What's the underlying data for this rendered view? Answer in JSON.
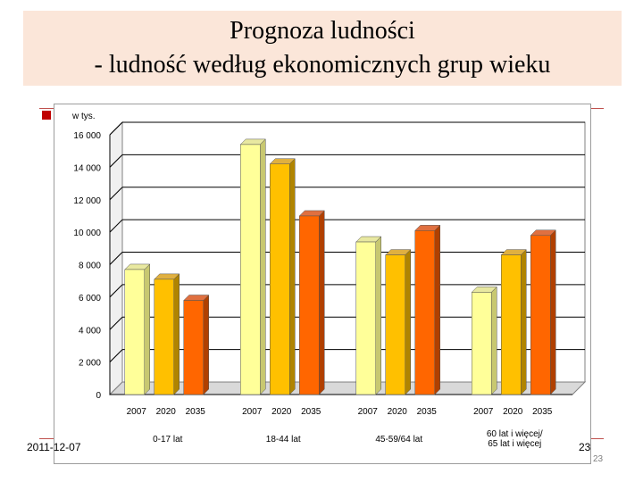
{
  "slide": {
    "title_line1": "Prognoza ludności",
    "title_line2": "- ludność według ekonomicznych grup wieku",
    "date": "2011-12-07",
    "page": "23",
    "page_small": "23"
  },
  "chart_data": {
    "type": "bar",
    "unit_label": "w tys.",
    "ylim": [
      0,
      16000
    ],
    "yticks": [
      "0",
      "2 000",
      "4 000",
      "6 000",
      "8 000",
      "10 000",
      "12 000",
      "14 000",
      "16 000"
    ],
    "groups": [
      {
        "label": "0-17 lat",
        "years": [
          "2007",
          "2020",
          "2035"
        ],
        "values": [
          7700,
          7100,
          5800
        ]
      },
      {
        "label": "18-44 lat",
        "years": [
          "2007",
          "2020",
          "2035"
        ],
        "values": [
          15400,
          14200,
          11000
        ]
      },
      {
        "label": "45-59/64 lat",
        "years": [
          "2007",
          "2020",
          "2035"
        ],
        "values": [
          9400,
          8600,
          10100
        ]
      },
      {
        "label": "60 lat i więcej/\n65 lat i więcej",
        "years": [
          "2007",
          "2020",
          "2035"
        ],
        "values": [
          6300,
          8600,
          9800
        ]
      }
    ],
    "colors": {
      "2007": {
        "front": "#ffff99",
        "side": "#c8c870",
        "top": "#e8e8a0"
      },
      "2020": {
        "front": "#ffc000",
        "side": "#b08400",
        "top": "#e0b040"
      },
      "2035": {
        "front": "#ff6600",
        "side": "#b04000",
        "top": "#e07040"
      }
    },
    "grid": true
  }
}
